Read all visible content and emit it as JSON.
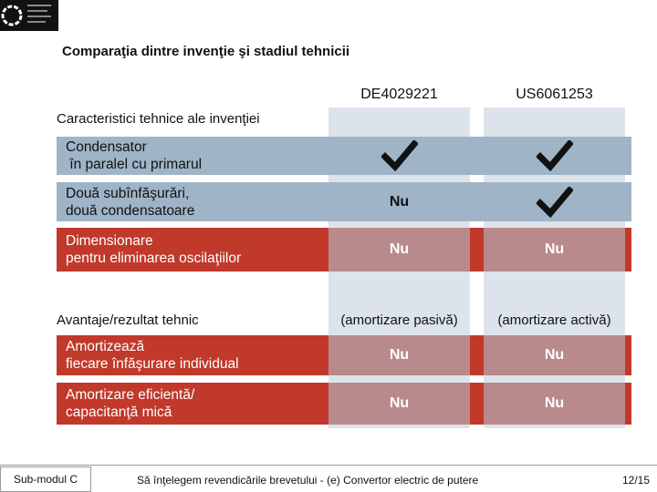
{
  "title": "Comparaţia dintre invenţie şi stadiul tehnicii",
  "columns": [
    "DE4029221",
    "US6061253"
  ],
  "sections": [
    {
      "heading": "Caracteristici tehnice ale invenţiei",
      "rows": [
        {
          "label": [
            "Condensator",
            " în paralel cu primarul"
          ],
          "cells": [
            true,
            true
          ]
        },
        {
          "label": [
            "Două subînfăşurări,",
            "două condensatoare"
          ],
          "cells": [
            "Nu",
            true
          ]
        },
        {
          "label": [
            "Dimensionare",
            "pentru eliminarea oscilaţiilor"
          ],
          "cells": [
            "Nu",
            "Nu"
          ]
        }
      ]
    },
    {
      "heading": "Avantaje/rezultat tehnic",
      "notes": [
        "(amortizare pasivă)",
        "(amortizare activă)"
      ],
      "rows": [
        {
          "label": [
            "Amortizează",
            "fiecare înfăşurare individual"
          ],
          "cells": [
            "Nu",
            "Nu"
          ]
        },
        {
          "label": [
            "Amortizare eficientă/",
            "capacitanţă mică"
          ],
          "cells": [
            "Nu",
            "Nu"
          ]
        }
      ]
    }
  ],
  "footer": {
    "left": "Sub-modul C",
    "center": "Să înţelegem revendicările brevetului - (e) Convertor electric de putere",
    "right": "12/15"
  }
}
